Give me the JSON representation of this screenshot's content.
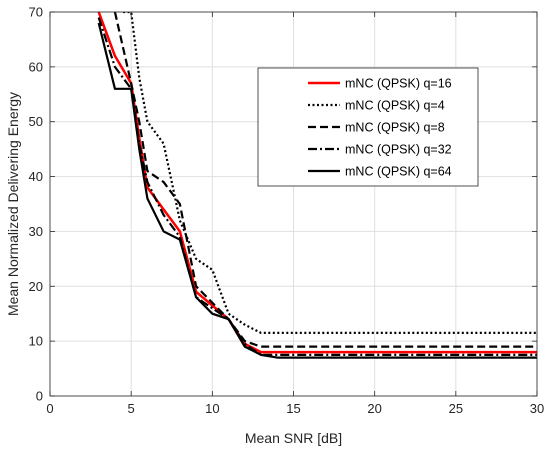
{
  "chart_data": {
    "type": "line",
    "title": "",
    "xlabel": "Mean SNR [dB]",
    "ylabel": "Mean Normalized Delivering Energy",
    "xlim": [
      0,
      30
    ],
    "ylim": [
      0,
      70
    ],
    "xticks": [
      0,
      5,
      10,
      15,
      20,
      25,
      30
    ],
    "yticks": [
      0,
      10,
      20,
      30,
      40,
      50,
      60,
      70
    ],
    "grid": true,
    "legend_position": "top-right",
    "series": [
      {
        "name": "mNC (QPSK)  q=16",
        "color": "#ff0000",
        "dash": "solid",
        "x": [
          3,
          4,
          5,
          5.5,
          6,
          7,
          8,
          9,
          10,
          11,
          12,
          13,
          14,
          15,
          20,
          25,
          30
        ],
        "y": [
          70,
          62,
          57,
          47,
          38,
          34,
          30,
          19,
          16.5,
          14,
          9.5,
          8,
          8,
          8,
          8,
          8,
          8
        ]
      },
      {
        "name": "mNC (QPSK)  q=4",
        "color": "#000000",
        "dash": "dotted",
        "x": [
          4.5,
          5,
          5.5,
          6,
          7,
          8,
          9,
          10,
          11,
          12,
          13,
          14,
          15,
          20,
          25,
          30
        ],
        "y": [
          70,
          70,
          58,
          50,
          46,
          32,
          25,
          23,
          15,
          13,
          11.5,
          11.5,
          11.5,
          11.5,
          11.5,
          11.5
        ]
      },
      {
        "name": "mNC (QPSK)  q=8",
        "color": "#000000",
        "dash": "dashed",
        "x": [
          4,
          5,
          5.5,
          6,
          7,
          8,
          9,
          10,
          11,
          12,
          13,
          14,
          15,
          20,
          25,
          30
        ],
        "y": [
          70,
          57,
          50,
          41,
          39,
          35,
          20,
          17,
          14,
          10,
          9,
          9,
          9,
          9,
          9,
          9
        ]
      },
      {
        "name": "mNC (QPSK)  q=32",
        "color": "#000000",
        "dash": "dashdot",
        "x": [
          3,
          4,
          5,
          5.5,
          6,
          7,
          8,
          9,
          10,
          11,
          12,
          13,
          14,
          15,
          20,
          25,
          30
        ],
        "y": [
          69,
          60,
          56,
          46,
          39,
          33,
          29,
          18,
          16,
          14,
          9.5,
          7.5,
          7.5,
          7.5,
          7.5,
          7.5,
          7.5
        ]
      },
      {
        "name": "mNC (QPSK)  q=64",
        "color": "#000000",
        "dash": "solid",
        "x": [
          3,
          4,
          5,
          5.5,
          6,
          7,
          8,
          9,
          10,
          11,
          12,
          13,
          14,
          15,
          20,
          25,
          30
        ],
        "y": [
          68,
          56,
          56,
          45,
          36,
          30,
          28.5,
          18,
          15,
          14,
          9,
          7.5,
          7,
          7,
          7,
          7,
          7
        ]
      }
    ]
  }
}
